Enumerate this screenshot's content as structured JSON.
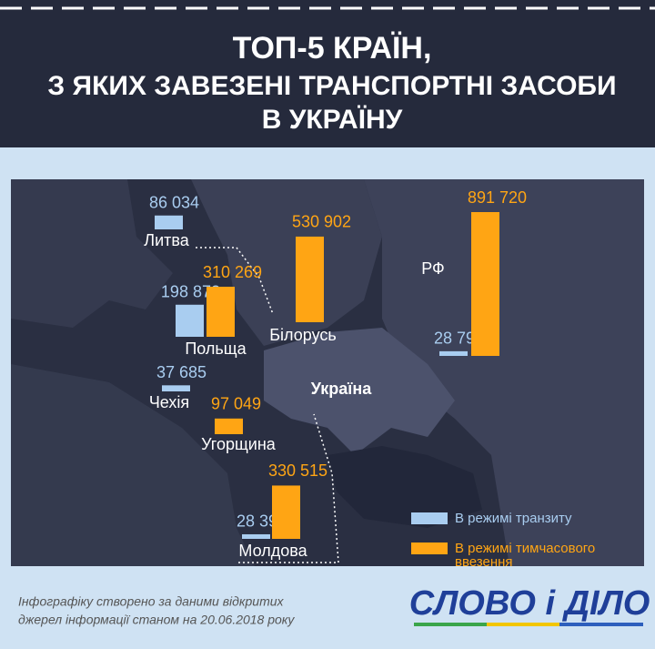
{
  "chart_data": {
    "type": "map-bar",
    "title": [
      "ТОП-5 КРАЇН,",
      "З ЯКИХ ЗАВЕЗЕНІ ТРАНСПОРТНІ ЗАСОБИ",
      "В УКРАЇНУ"
    ],
    "annotation": "Україна",
    "categories": [
      "Литва",
      "Польща",
      "Чехія",
      "Угорщина",
      "Білорусь",
      "Молдова",
      "РФ"
    ],
    "series": [
      {
        "name": "В режимі транзиту",
        "color": "#a9cdf0",
        "values": [
          86034,
          198872,
          37685,
          null,
          null,
          28392,
          28795
        ],
        "value_labels": [
          "86 034",
          "198 872",
          "37 685",
          null,
          null,
          "28 392",
          "28 795"
        ]
      },
      {
        "name": "В режимі тимчасового ввезення",
        "color": "#ffa514",
        "values": [
          null,
          310269,
          null,
          97049,
          530902,
          330515,
          891720
        ],
        "value_labels": [
          null,
          "310 269",
          null,
          "97 049",
          "530 902",
          "330 515",
          "891 720"
        ]
      }
    ],
    "footnote": [
      "Інфографіку створено за даними відкритих",
      "джерел інформації станом на 20.06.2018 року"
    ],
    "logo": "СЛОВО і ДІЛО"
  }
}
